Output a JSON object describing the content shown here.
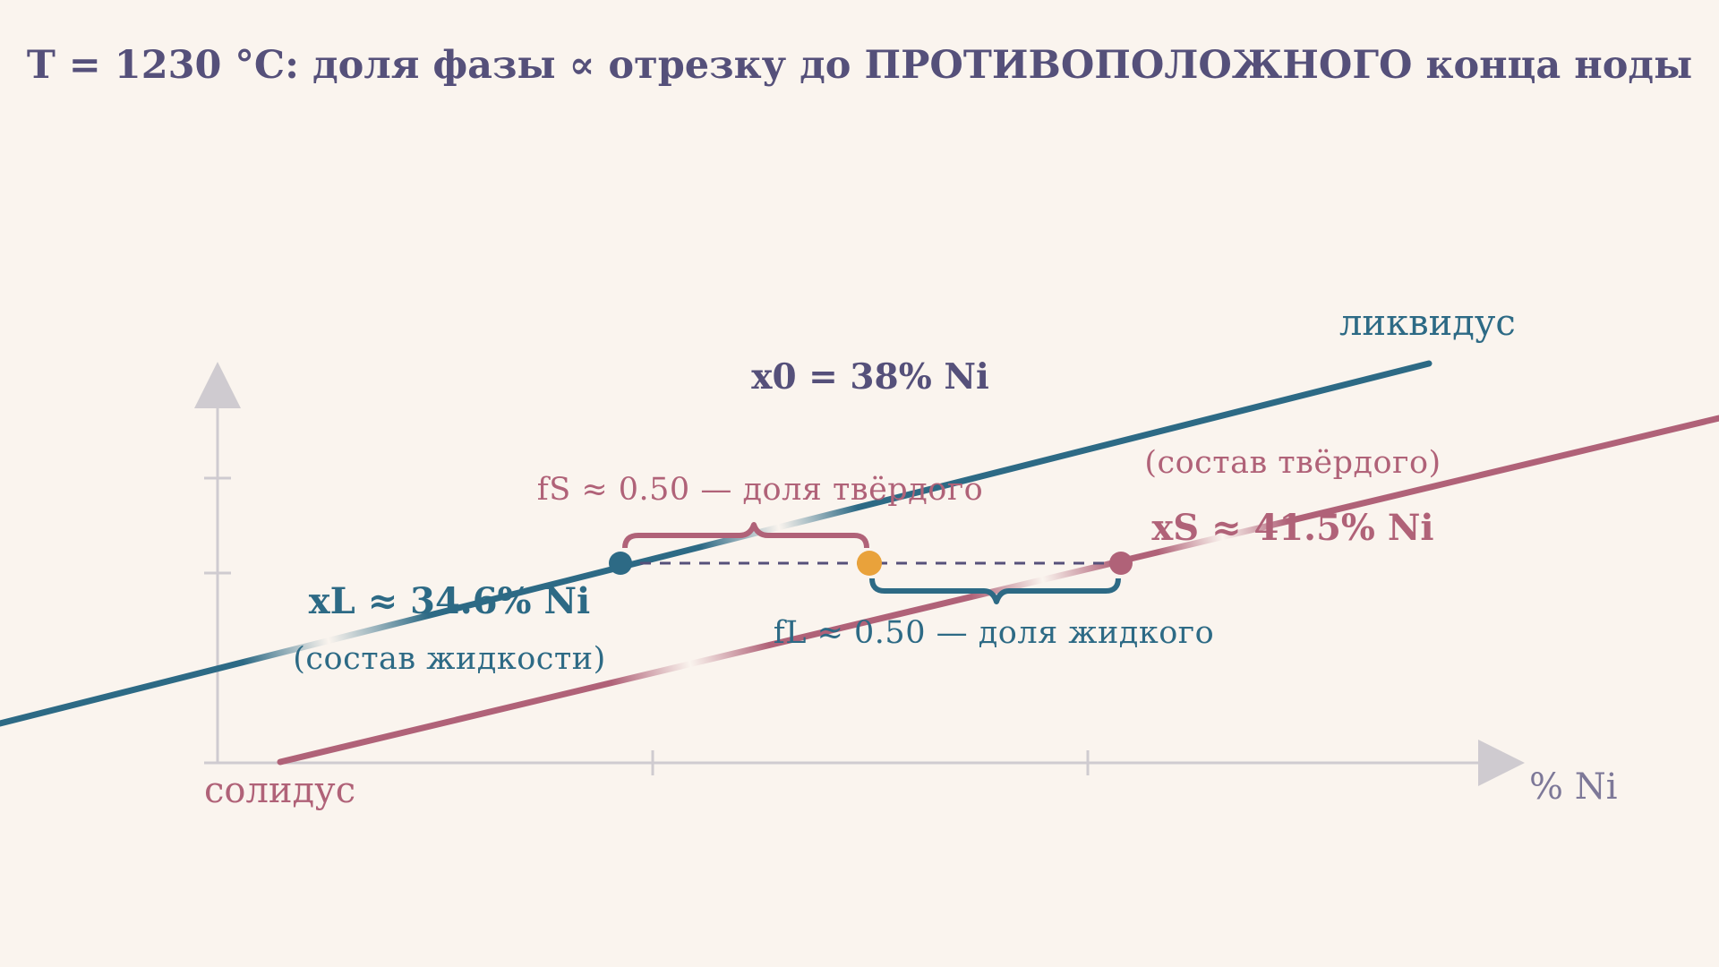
{
  "title": "T = 1230 °C: доля фазы ∝ отрезку до ПРОТИВОПОЛОЖНОГО конца ноды",
  "overall": {
    "label": "x0 = 38% Ni",
    "x0": 38
  },
  "liquid": {
    "label": "xL ≈ 34.6% Ni",
    "note": "(состав жидкости)",
    "x": 34.6,
    "fraction_label": "fL ≈ 0.50 — доля жидкого",
    "fraction": 0.5
  },
  "solid": {
    "label": "xS ≈ 41.5% Ni",
    "note": "(состав твёрдого)",
    "x": 41.5,
    "fraction_label": "fS ≈ 0.50 — доля твёрдого",
    "fraction": 0.5
  },
  "curves": {
    "liquidus": "ликвидус",
    "solidus": "солидус"
  },
  "axis": {
    "x_label": "% Ni"
  },
  "colors": {
    "background": "#faf4ee",
    "liquidus": "#2d6a85",
    "solidus": "#b06278",
    "overall_point": "#e9a23b",
    "text": "#55507a",
    "axis": "#cfcbd0"
  }
}
